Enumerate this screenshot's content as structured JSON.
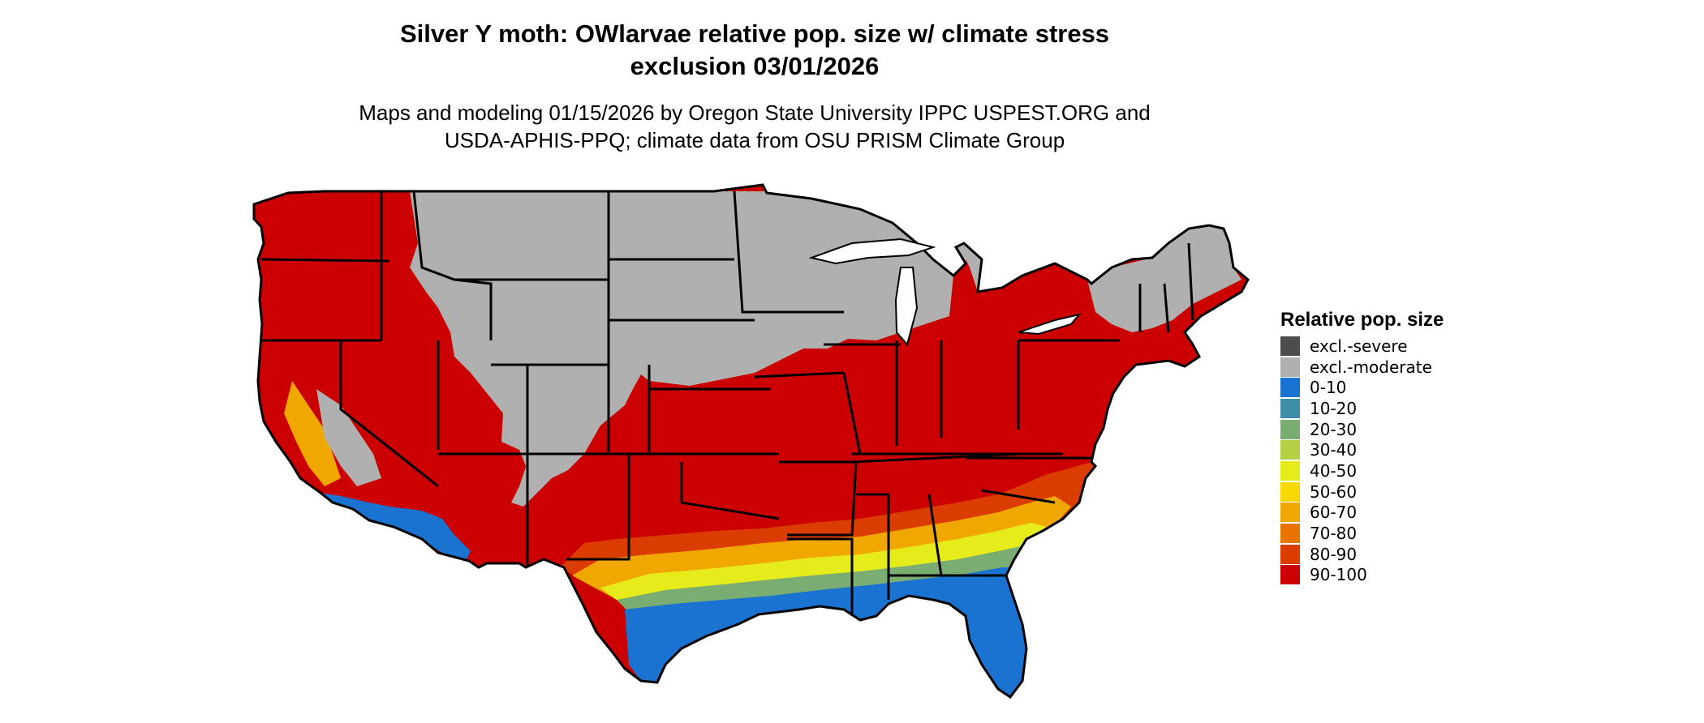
{
  "title": {
    "line1": "Silver Y moth: OWlarvae relative pop. size w/ climate stress",
    "line2": "exclusion 03/01/2026"
  },
  "subtitle": {
    "line1": "Maps and modeling 01/15/2026 by Oregon State University IPPC USPEST.ORG and",
    "line2": "USDA-APHIS-PPQ; climate data from OSU PRISM Climate Group"
  },
  "legend": {
    "title": "Relative pop. size",
    "items": [
      {
        "label": "excl.-severe",
        "color": "#4d4d4d"
      },
      {
        "label": "excl.-moderate",
        "color": "#b0b0b0"
      },
      {
        "label": "0-10",
        "color": "#1a73d1"
      },
      {
        "label": "10-20",
        "color": "#3d8ea6"
      },
      {
        "label": "20-30",
        "color": "#7aad72"
      },
      {
        "label": "30-40",
        "color": "#b5d042"
      },
      {
        "label": "40-50",
        "color": "#e6ec1a"
      },
      {
        "label": "50-60",
        "color": "#f7d800"
      },
      {
        "label": "60-70",
        "color": "#f0a800"
      },
      {
        "label": "70-80",
        "color": "#e87400"
      },
      {
        "label": "80-90",
        "color": "#db3c00"
      },
      {
        "label": "90-100",
        "color": "#cc0000"
      }
    ]
  }
}
